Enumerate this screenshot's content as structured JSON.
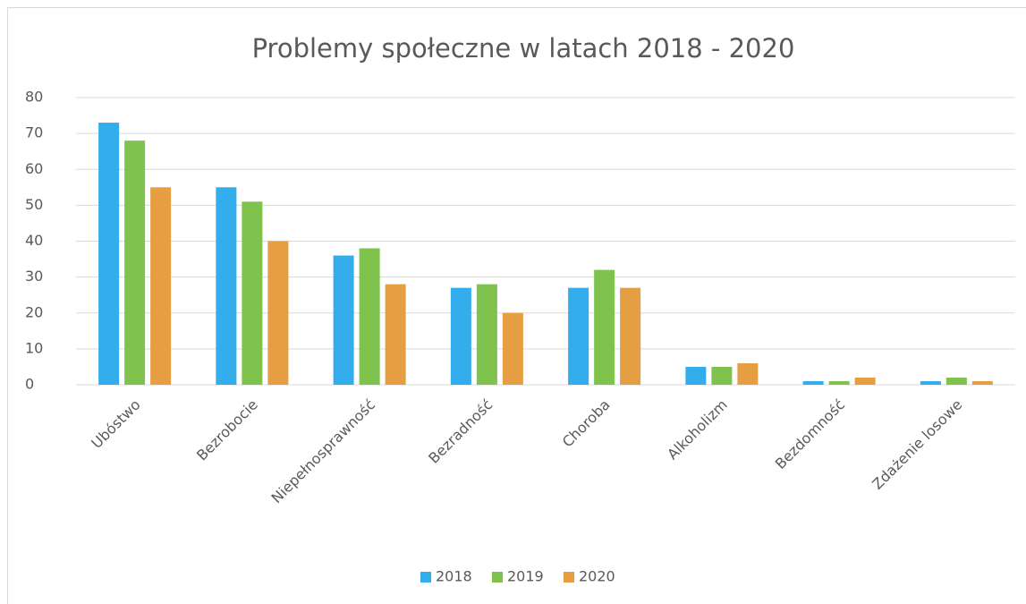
{
  "chart_data": {
    "type": "bar",
    "title": "Problemy społeczne w latach 2018 - 2020",
    "categories": [
      "Ubóstwo",
      "Bezrobocie",
      "Niepełnosprawność",
      "Bezradność",
      "Choroba",
      "Alkoholizm",
      "Bezdomność",
      "Zdażenie losowe"
    ],
    "series": [
      {
        "name": "2018",
        "color": "#33adeb",
        "values": [
          73,
          55,
          36,
          27,
          27,
          5,
          1,
          1
        ]
      },
      {
        "name": "2019",
        "color": "#7fc24e",
        "values": [
          68,
          51,
          38,
          28,
          32,
          5,
          1,
          2
        ]
      },
      {
        "name": "2020",
        "color": "#e59e42",
        "values": [
          55,
          40,
          28,
          20,
          27,
          6,
          2,
          1
        ]
      }
    ],
    "ylim": [
      0,
      80
    ],
    "yticks": [
      0,
      10,
      20,
      30,
      40,
      50,
      60,
      70,
      80
    ],
    "grid": true,
    "legend": "bottom"
  }
}
